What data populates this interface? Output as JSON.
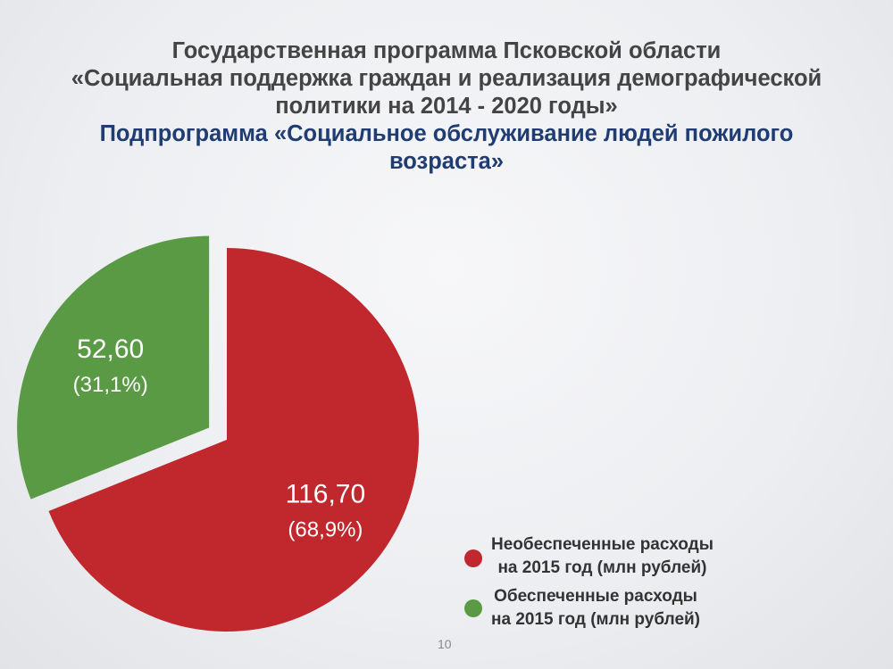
{
  "title": {
    "lines": [
      "Государственная программа Псковской области",
      "«Социальная поддержка граждан и реализация демографической",
      "политики на 2014 - 2020 годы»"
    ],
    "subtitle_lines": [
      "Подпрограмма «Социальное обслуживание людей пожилого",
      "возраста»"
    ]
  },
  "chart_data": {
    "type": "pie",
    "slices": [
      {
        "name": "Необеспеченные расходы\nна 2015 год  (млн рублей)",
        "value": 116.7,
        "value_label": "116,70",
        "percent_label": "(68,9%)",
        "color": "#c0282d"
      },
      {
        "name": "Обеспеченные расходы\nна 2015 год (млн рублей)",
        "value": 52.6,
        "value_label": "52,60",
        "percent_label": "(31,1%)",
        "color": "#5a9a45"
      }
    ],
    "exploded_slice": 1,
    "legend_position": "bottom-right"
  },
  "page_number": "10"
}
